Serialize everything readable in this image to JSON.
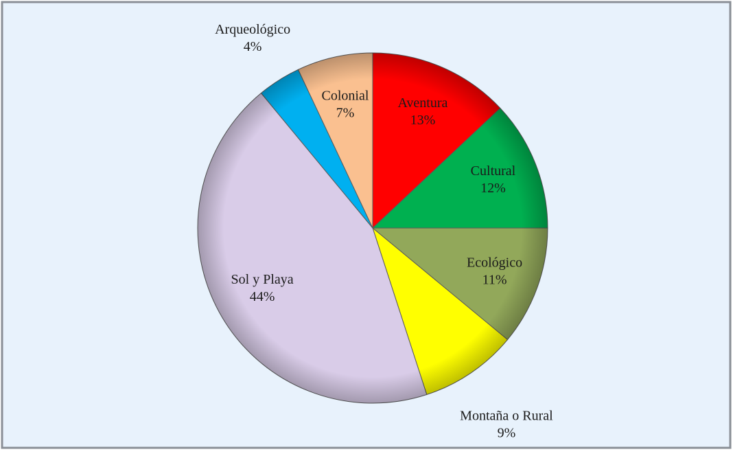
{
  "chart_data": {
    "type": "pie",
    "categories": [
      "Aventura",
      "Cultural",
      "Ecológico",
      "Montaña o Rural",
      "Sol y Playa",
      "Arqueológico",
      "Colonial"
    ],
    "values": [
      13,
      12,
      11,
      9,
      44,
      4,
      7
    ],
    "value_labels": [
      "13%",
      "12%",
      "11%",
      "9%",
      "44%",
      "4%",
      "7%"
    ],
    "colors": [
      "#ff0000",
      "#00b050",
      "#92a85a",
      "#ffff00",
      "#d9cce8",
      "#00b0f0",
      "#fac090"
    ]
  }
}
